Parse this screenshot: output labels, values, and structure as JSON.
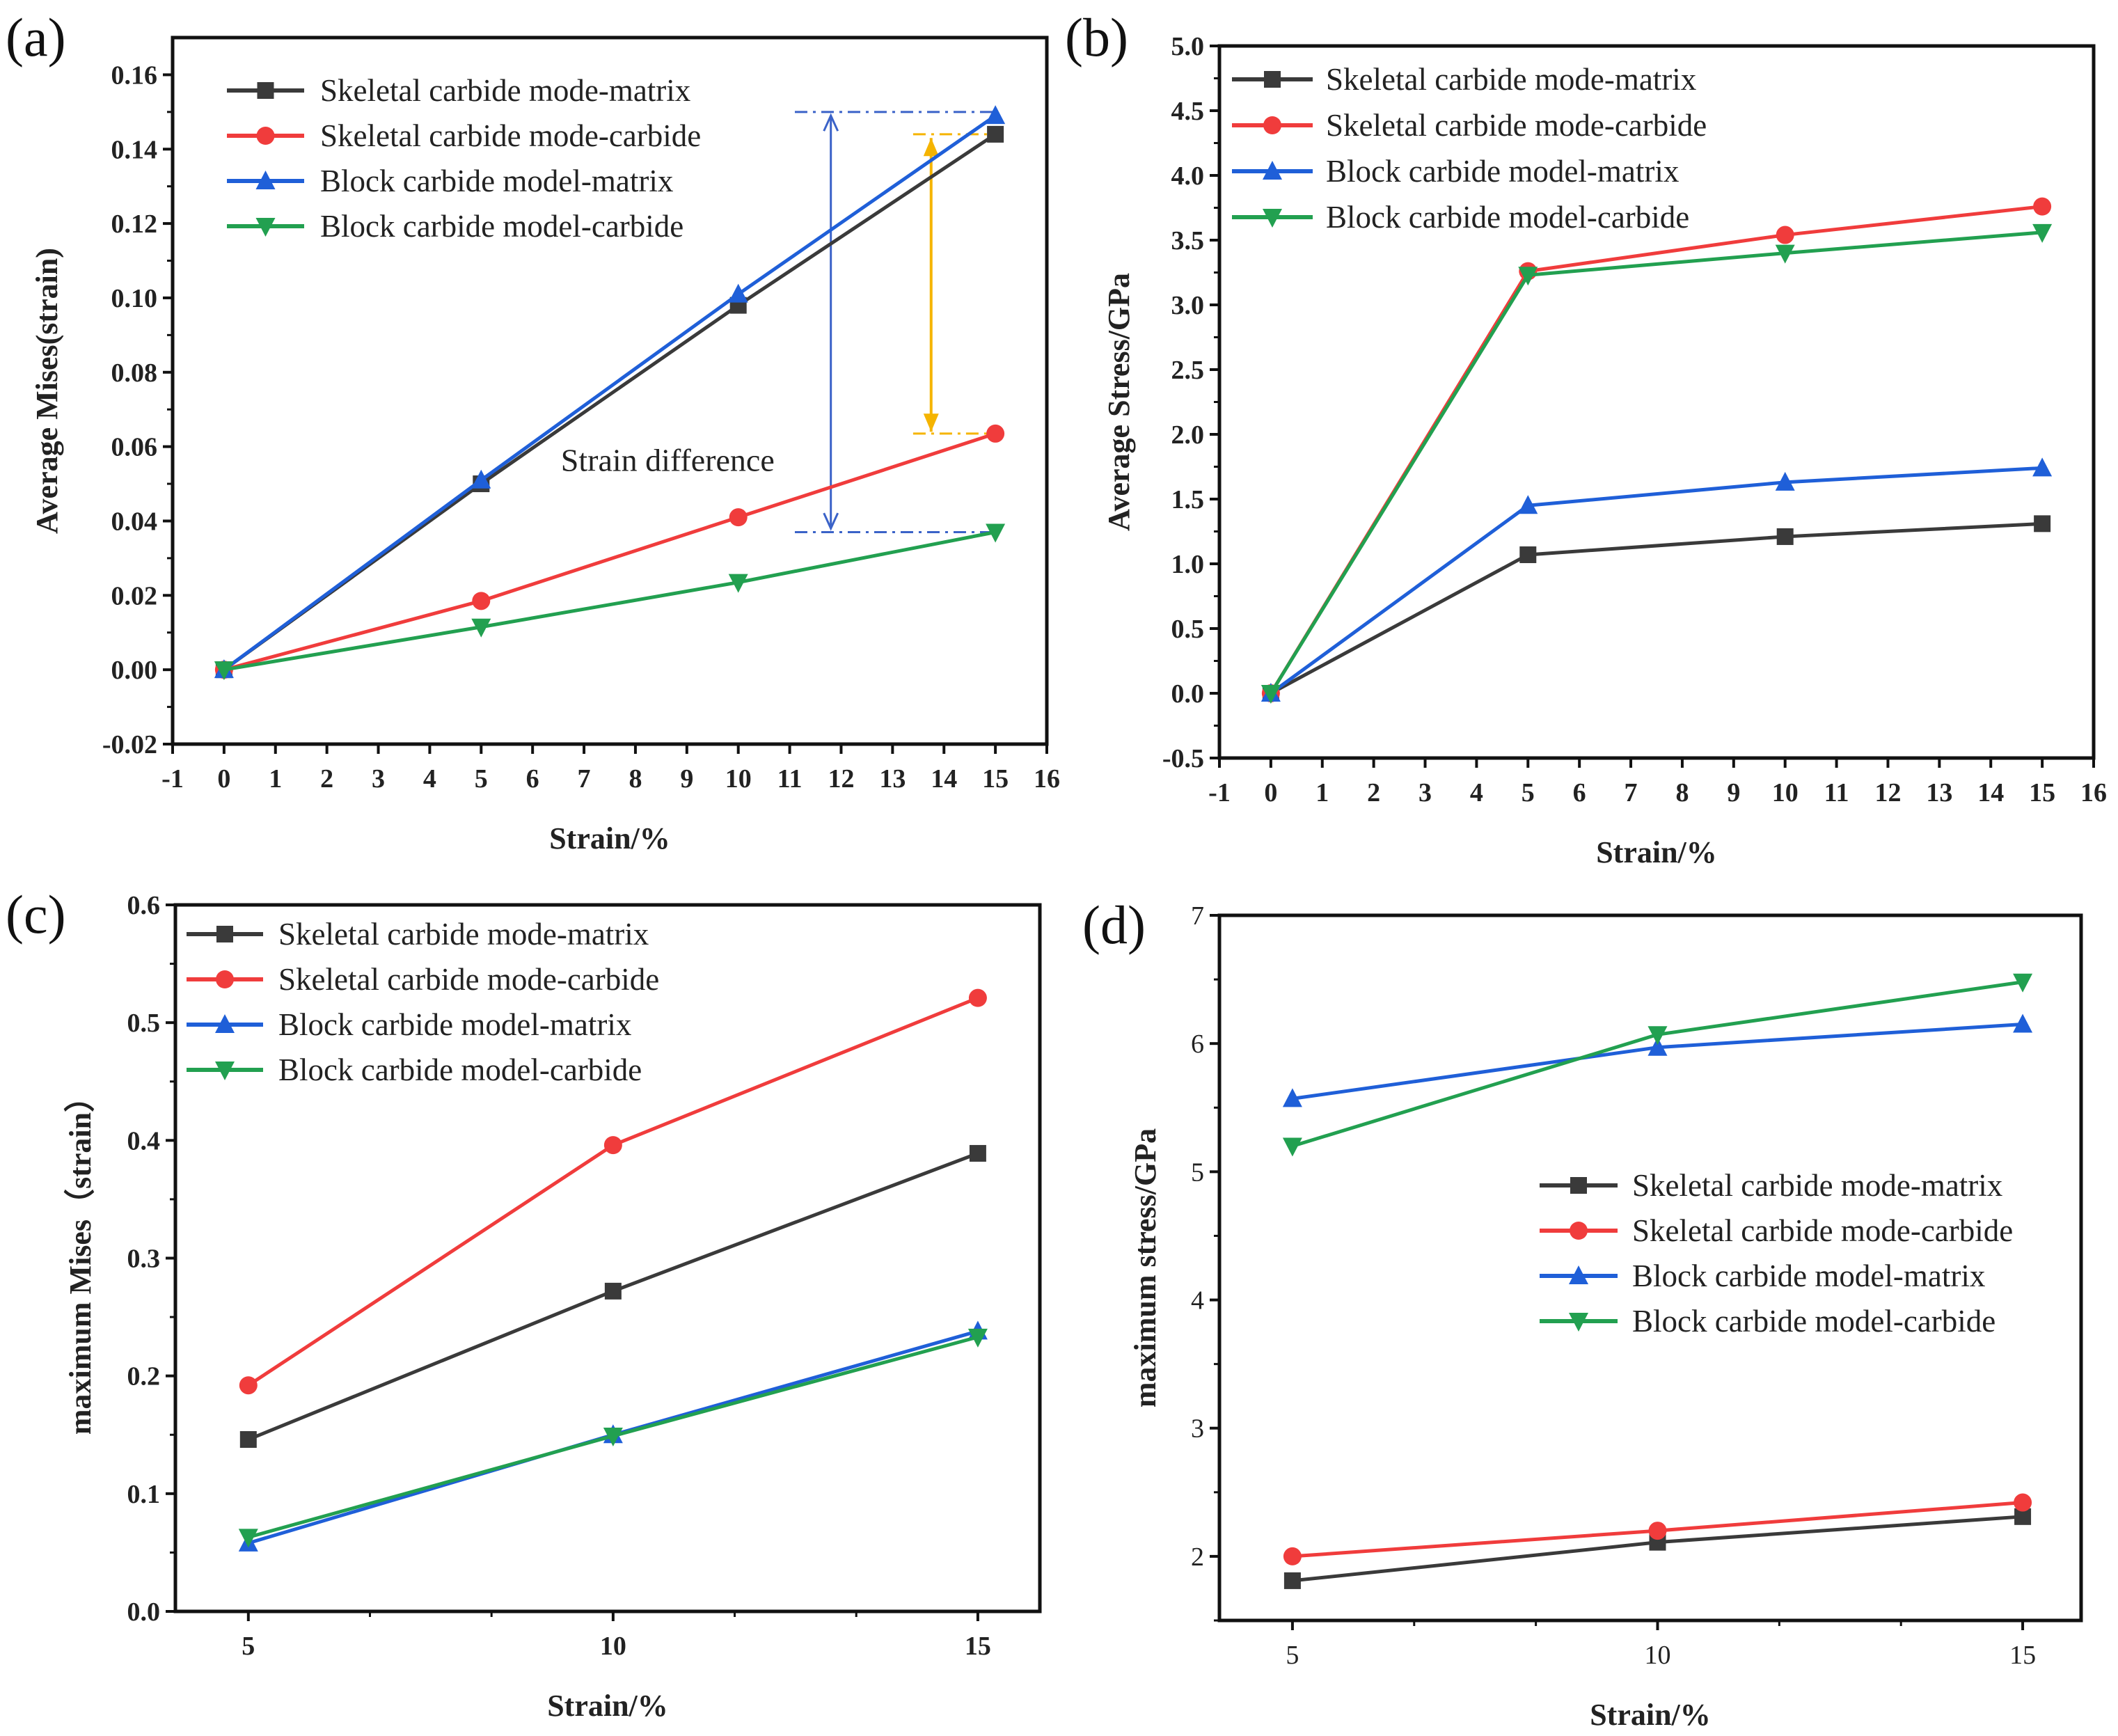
{
  "chart_data": [
    {
      "panel_label": "(a)",
      "type": "line",
      "xlabel": "Strain/%",
      "ylabel": "Average Mises(strain)",
      "xlim": [
        -1,
        16
      ],
      "ylim": [
        -0.02,
        0.17
      ],
      "xticks": [
        -1,
        0,
        1,
        2,
        3,
        4,
        5,
        6,
        7,
        8,
        9,
        10,
        11,
        12,
        13,
        14,
        15,
        16
      ],
      "yticks": [
        -0.02,
        0,
        0.02,
        0.04,
        0.06,
        0.08,
        0.1,
        0.12,
        0.14,
        0.16
      ],
      "ytick_decimals": 2,
      "legend_position": "top-left",
      "annotation": "Strain difference",
      "x": [
        0,
        5,
        10,
        15
      ],
      "series": [
        {
          "name": "Skeletal carbide mode-matrix",
          "color": "#3a3a3a",
          "marker": "square",
          "values": [
            0,
            0.05,
            0.098,
            0.144
          ]
        },
        {
          "name": "Skeletal carbide mode-carbide",
          "color": "#f03c3c",
          "marker": "circle",
          "values": [
            0,
            0.0185,
            0.041,
            0.0635
          ]
        },
        {
          "name": "Block carbide model-matrix",
          "color": "#1f5fd8",
          "marker": "triangle-up",
          "values": [
            0,
            0.051,
            0.101,
            0.149
          ]
        },
        {
          "name": "Block carbide model-carbide",
          "color": "#22a050",
          "marker": "triangle-down",
          "values": [
            0,
            0.0115,
            0.0235,
            0.037
          ]
        }
      ]
    },
    {
      "panel_label": "(b)",
      "type": "line",
      "xlabel": "Strain/%",
      "ylabel": "Average Stress/GPa",
      "xlim": [
        -1,
        16
      ],
      "ylim": [
        -0.5,
        5.0
      ],
      "xticks": [
        -1,
        0,
        1,
        2,
        3,
        4,
        5,
        6,
        7,
        8,
        9,
        10,
        11,
        12,
        13,
        14,
        15,
        16
      ],
      "yticks": [
        -0.5,
        0,
        0.5,
        1,
        1.5,
        2,
        2.5,
        3,
        3.5,
        4,
        4.5,
        5
      ],
      "ytick_decimals": 1,
      "legend_position": "top-left",
      "x": [
        0,
        5,
        10,
        15
      ],
      "series": [
        {
          "name": "Skeletal carbide mode-matrix",
          "color": "#3a3a3a",
          "marker": "square",
          "values": [
            0,
            1.07,
            1.21,
            1.31
          ]
        },
        {
          "name": "Skeletal carbide mode-carbide",
          "color": "#f03c3c",
          "marker": "circle",
          "values": [
            0,
            3.26,
            3.54,
            3.76
          ]
        },
        {
          "name": "Block carbide model-matrix",
          "color": "#1f5fd8",
          "marker": "triangle-up",
          "values": [
            0,
            1.45,
            1.63,
            1.74
          ]
        },
        {
          "name": "Block carbide model-carbide",
          "color": "#22a050",
          "marker": "triangle-down",
          "values": [
            0,
            3.23,
            3.4,
            3.56
          ]
        }
      ]
    },
    {
      "panel_label": "(c)",
      "type": "line",
      "xlabel": "Strain/%",
      "ylabel": "maximum Mises（strain）",
      "xlim": [
        4,
        15.85
      ],
      "ylim": [
        0,
        0.6
      ],
      "xticks": [
        5,
        10,
        15
      ],
      "yticks": [
        0,
        0.1,
        0.2,
        0.3,
        0.4,
        0.5,
        0.6
      ],
      "ytick_decimals": 1,
      "legend_position": "top-left",
      "x": [
        5,
        10,
        15
      ],
      "series": [
        {
          "name": "Skeletal carbide mode-matrix",
          "color": "#3a3a3a",
          "marker": "square",
          "values": [
            0.146,
            0.272,
            0.389
          ]
        },
        {
          "name": "Skeletal carbide mode-carbide",
          "color": "#f03c3c",
          "marker": "circle",
          "values": [
            0.192,
            0.396,
            0.521
          ]
        },
        {
          "name": "Block carbide model-matrix",
          "color": "#1f5fd8",
          "marker": "triangle-up",
          "values": [
            0.058,
            0.15,
            0.238
          ]
        },
        {
          "name": "Block carbide model-carbide",
          "color": "#22a050",
          "marker": "triangle-down",
          "values": [
            0.063,
            0.149,
            0.233
          ]
        }
      ]
    },
    {
      "panel_label": "(d)",
      "type": "line",
      "xlabel": "Strain/%",
      "ylabel": "maximum stress/GPa",
      "xlim": [
        4,
        15.8
      ],
      "ylim": [
        1.5,
        7
      ],
      "xticks": [
        5,
        10,
        15
      ],
      "yticks": [
        2,
        3,
        4,
        5,
        6,
        7
      ],
      "ytick_decimals": 0,
      "legend_position": "center-right",
      "x": [
        5,
        10,
        15
      ],
      "series": [
        {
          "name": "Skeletal carbide mode-matrix",
          "color": "#3a3a3a",
          "marker": "square",
          "values": [
            1.81,
            2.11,
            2.31
          ]
        },
        {
          "name": "Skeletal carbide mode-carbide",
          "color": "#f03c3c",
          "marker": "circle",
          "values": [
            2.0,
            2.2,
            2.42
          ]
        },
        {
          "name": "Block carbide model-matrix",
          "color": "#1f5fd8",
          "marker": "triangle-up",
          "values": [
            5.57,
            5.97,
            6.15
          ]
        },
        {
          "name": "Block carbide model-carbide",
          "color": "#22a050",
          "marker": "triangle-down",
          "values": [
            5.2,
            6.07,
            6.48
          ]
        }
      ]
    }
  ]
}
